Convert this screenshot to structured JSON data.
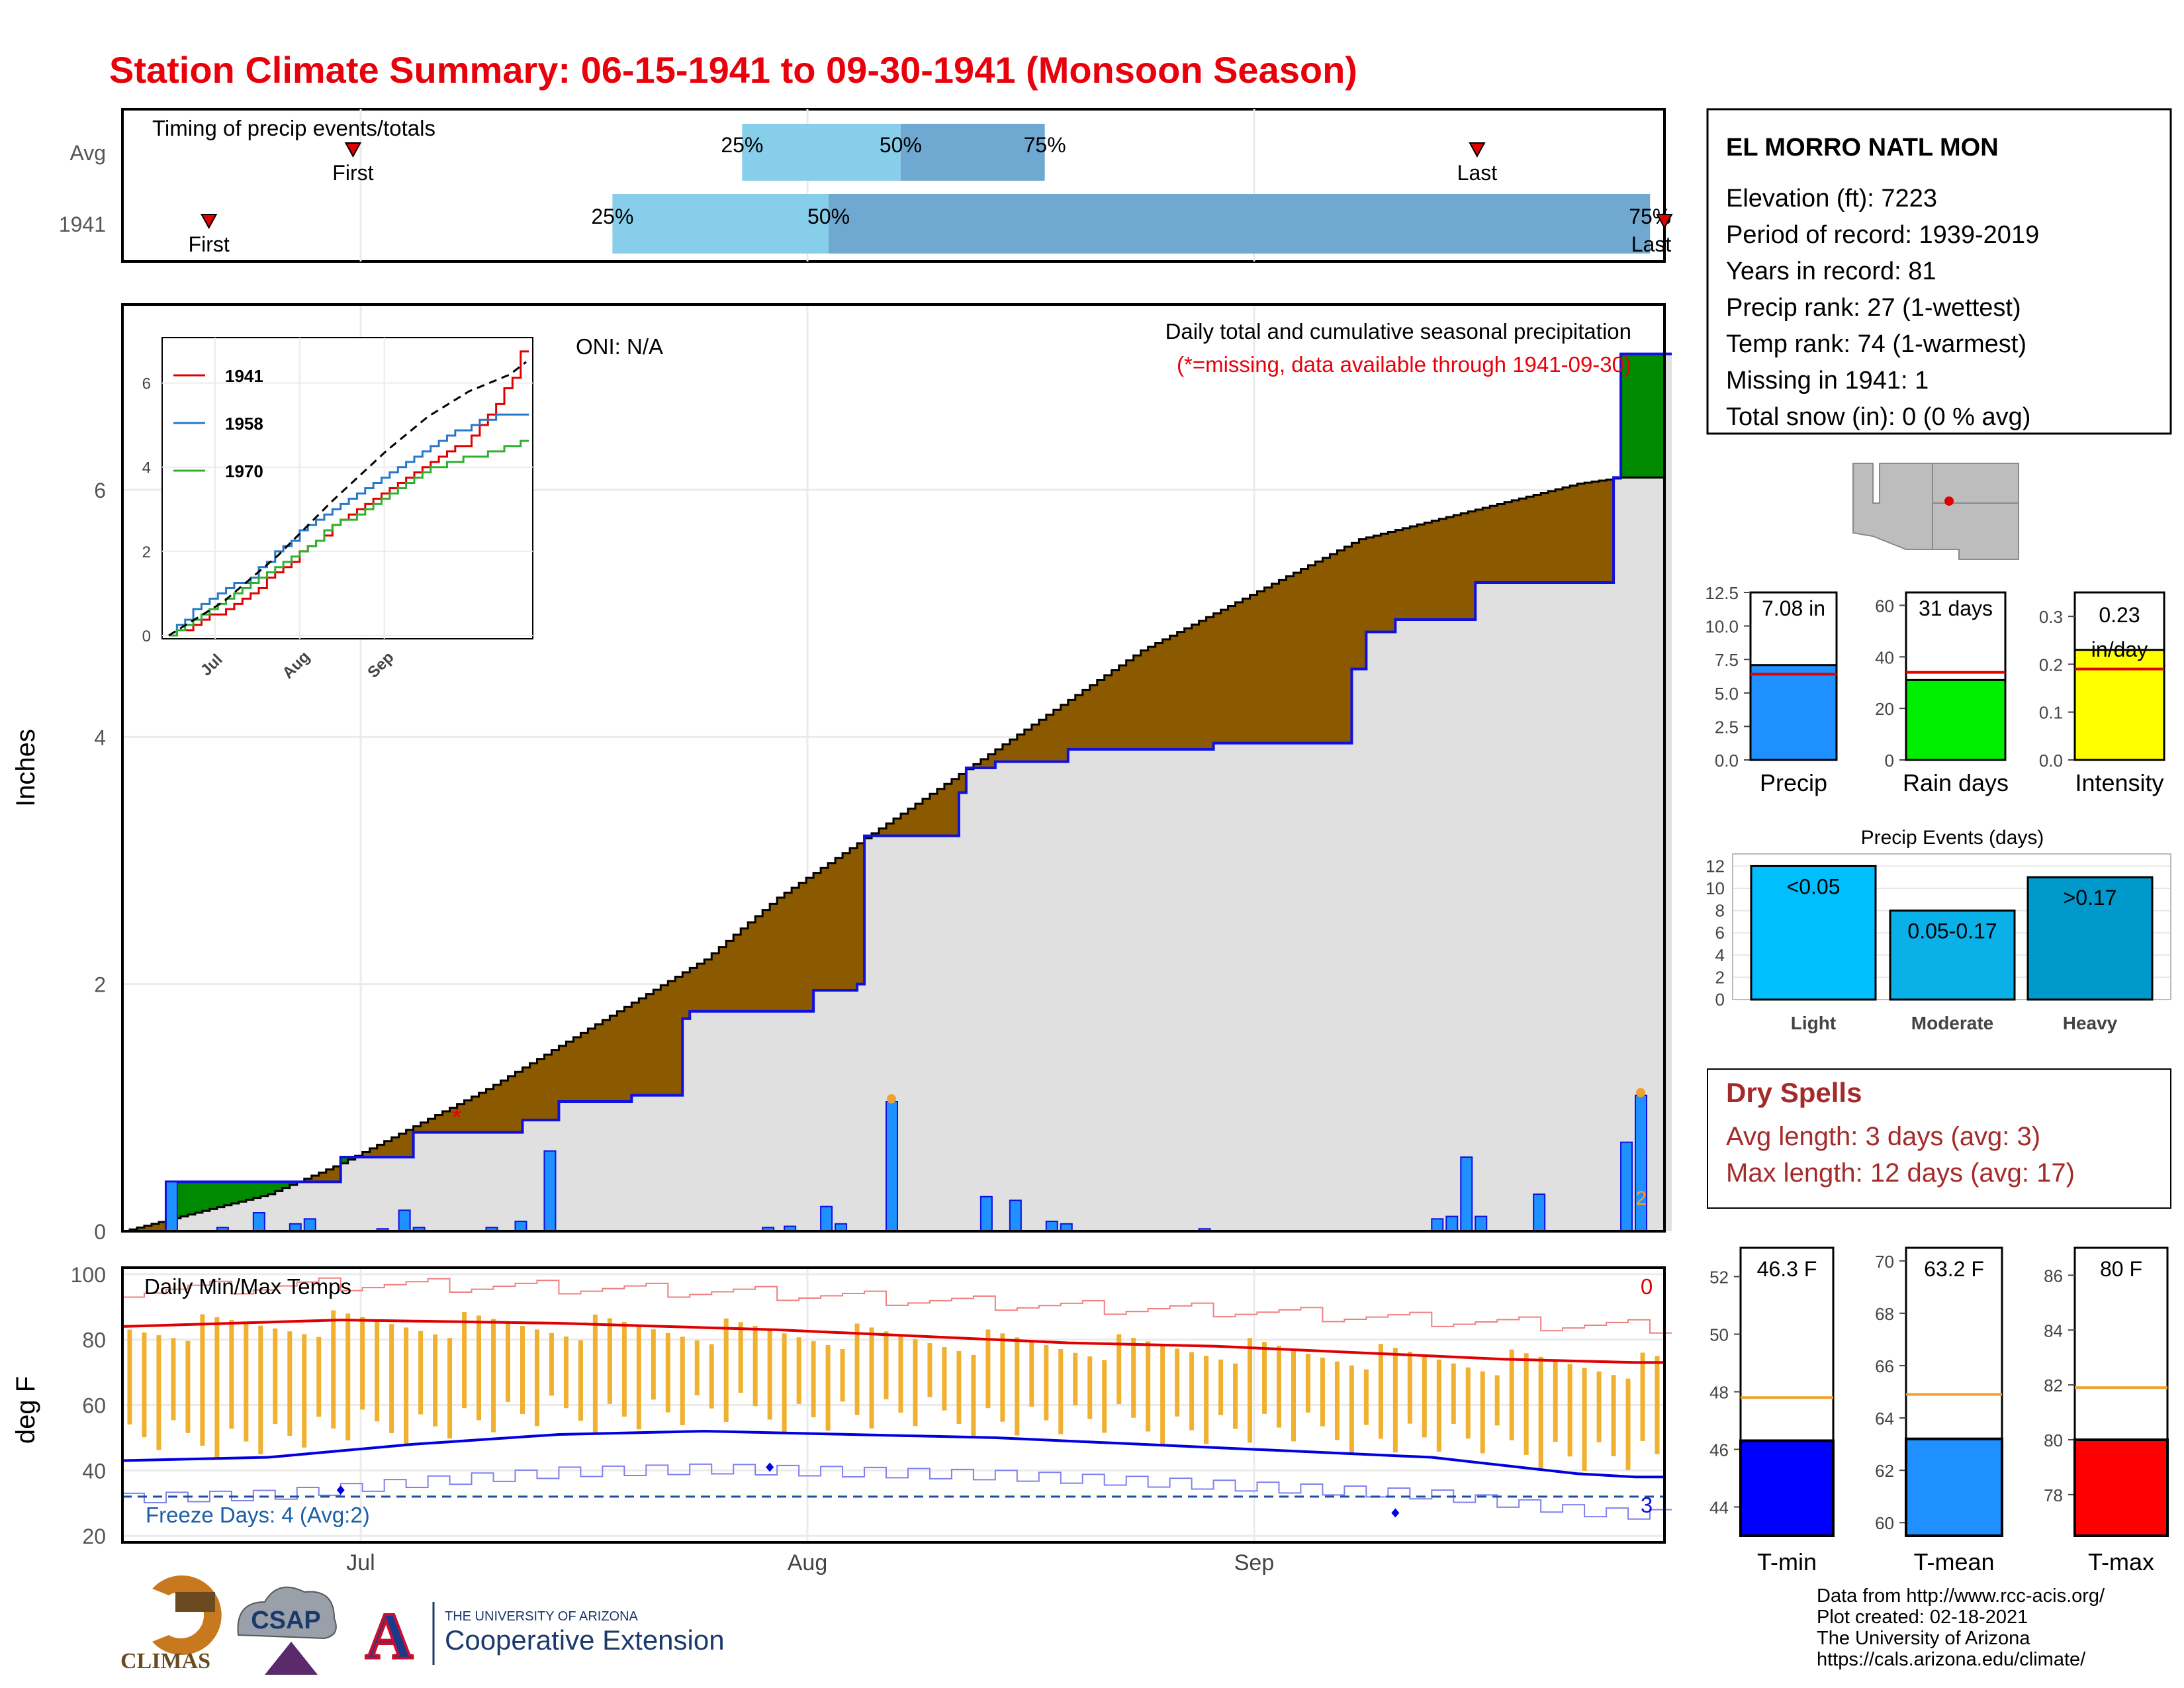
{
  "title": "Station Climate Summary: 06-15-1941 to 09-30-1941 (Monsoon Season)",
  "colors": {
    "title": "#e8000b",
    "light_blue": "#87ceeb",
    "mid_blue": "#6fa8d0",
    "brown": "#8b5a00",
    "green": "#008a00",
    "grey_fill": "#e0e0e0",
    "blue_line": "#1010e0",
    "bar_blue": "#1e90ff",
    "orange": "#f0b030",
    "red": "#e00000",
    "dry_spell": "#a52a2a"
  },
  "timing": {
    "title": "Timing of precip events/totals",
    "rows": [
      {
        "label": "Avg",
        "first": "First",
        "last": "Last",
        "p25": "25%",
        "p50": "50%",
        "p75": "75%",
        "first_day": "07-01",
        "p25_day": "07-28",
        "p50_day": "08-08",
        "p75_day": "08-18",
        "last_day": "09-17"
      },
      {
        "label": "1941",
        "first": "First",
        "last": "Last",
        "p25": "25%",
        "p50": "50%",
        "p75": "75%",
        "first_day": "06-21",
        "p25_day": "07-19",
        "p50_day": "08-03",
        "p75_day": "09-29",
        "last_day": "09-30"
      }
    ]
  },
  "station": {
    "name": "EL MORRO NATL MON",
    "lines": [
      "Elevation (ft): 7223",
      "Period of record: 1939-2019",
      "Years in record: 81",
      "Precip rank: 27 (1-wettest)",
      "Temp rank: 74 (1-warmest)",
      "Missing in 1941: 1",
      "Total snow (in): 0 (0 % avg)"
    ]
  },
  "main_chart": {
    "oni": "ONI: N/A",
    "title": "Daily total and cumulative seasonal precipitation",
    "subtitle": "(*=missing, data available through 1941-09-30)",
    "ylabel": "Inches",
    "yticks": [
      "0",
      "2",
      "4",
      "6"
    ],
    "missing_marker": "*",
    "count_label": "2"
  },
  "inset": {
    "legend": [
      "1941",
      "1958",
      "1970"
    ],
    "yticks": [
      "0",
      "2",
      "4",
      "6"
    ],
    "xticks": [
      "Jul",
      "Aug",
      "Sep"
    ]
  },
  "temp_chart": {
    "title": "Daily Min/Max Temps",
    "ylabel": "deg F",
    "yticks": [
      "20",
      "40",
      "60",
      "80",
      "100"
    ],
    "freeze": "Freeze Days: 4 (Avg:2)",
    "count_max": "0",
    "count_min": "3",
    "xticks": [
      "Jul",
      "Aug",
      "Sep"
    ]
  },
  "summary_bars": [
    {
      "label": "Precip",
      "value_label": "7.08 in",
      "value": 7.08,
      "avg": 6.4,
      "max": 12.5,
      "ticks": [
        "0.0",
        "2.5",
        "5.0",
        "7.5",
        "10.0",
        "12.5"
      ],
      "color": "#1e90ff"
    },
    {
      "label": "Rain days",
      "value_label": "31 days",
      "value": 31,
      "avg": 34,
      "max": 65,
      "ticks": [
        "0",
        "20",
        "40",
        "60"
      ],
      "color": "#00ee00"
    },
    {
      "label": "Intensity",
      "value_label": "0.23 in/day",
      "value": 0.23,
      "avg": 0.19,
      "max": 0.35,
      "ticks": [
        "0.0",
        "0.1",
        "0.2",
        "0.3"
      ],
      "color": "#ffff00"
    }
  ],
  "events": {
    "title": "Precip Events (days)",
    "yticks": [
      "0",
      "2",
      "4",
      "6",
      "8",
      "10",
      "12"
    ],
    "bars": [
      {
        "category": "Light",
        "label": "<0.05",
        "value": 12,
        "color": "#00bfff"
      },
      {
        "category": "Moderate",
        "label": "0.05-0.17",
        "value": 8,
        "color": "#0ab0e8"
      },
      {
        "category": "Heavy",
        "label": ">0.17",
        "value": 11,
        "color": "#0099cc"
      }
    ]
  },
  "dry_spells": {
    "title": "Dry Spells",
    "avg": "Avg length: 3 days (avg: 3)",
    "max": "Max length: 12 days (avg: 17)"
  },
  "temp_bars": [
    {
      "label": "T-min",
      "value_label": "46.3 F",
      "value": 46.3,
      "avg": 47.8,
      "min": 43,
      "max": 53,
      "ticks": [
        "44",
        "46",
        "48",
        "50",
        "52"
      ],
      "color": "#0000ff"
    },
    {
      "label": "T-mean",
      "value_label": "63.2 F",
      "value": 63.2,
      "avg": 64.9,
      "min": 59.5,
      "max": 70.5,
      "ticks": [
        "60",
        "62",
        "64",
        "66",
        "68",
        "70"
      ],
      "color": "#1e90ff"
    },
    {
      "label": "T-max",
      "value_label": "80 F",
      "value": 80,
      "avg": 81.9,
      "min": 76.5,
      "max": 87,
      "ticks": [
        "78",
        "80",
        "82",
        "84",
        "86"
      ],
      "color": "#ff0000"
    }
  ],
  "footer": {
    "lines": [
      "Data from http://www.rcc-acis.org/",
      "Plot created: 02-18-2021",
      "The University of Arizona",
      "https://cals.arizona.edu/climate/"
    ],
    "logo_climas": "CLIMAS",
    "logo_csap": "CSAP",
    "logo_a": "A",
    "ua_line1": "THE UNIVERSITY OF ARIZONA",
    "ua_line2": "Cooperative Extension"
  },
  "chart_data": [
    {
      "type": "area",
      "title": "Daily total and cumulative seasonal precipitation",
      "ylabel": "Inches",
      "ylim": [
        0,
        7.5
      ],
      "x_range": [
        "1941-06-15",
        "1941-09-30"
      ],
      "cumulative_1941": [
        [
          0,
          0
        ],
        [
          6,
          0.4
        ],
        [
          7,
          0.4
        ],
        [
          30,
          0.6
        ],
        [
          40,
          0.8
        ],
        [
          55,
          0.9
        ],
        [
          60,
          1.05
        ],
        [
          70,
          1.1
        ],
        [
          77,
          1.72
        ],
        [
          78,
          1.78
        ],
        [
          89,
          1.78
        ],
        [
          95,
          1.95
        ],
        [
          101,
          2.0
        ],
        [
          102,
          3.2
        ],
        [
          115,
          3.55
        ],
        [
          116,
          3.75
        ],
        [
          120,
          3.8
        ],
        [
          130,
          3.9
        ],
        [
          150,
          3.95
        ],
        [
          168,
          3.95
        ],
        [
          169,
          4.55
        ],
        [
          171,
          4.85
        ],
        [
          175,
          4.95
        ],
        [
          186,
          5.25
        ],
        [
          204,
          5.25
        ],
        [
          205,
          6.1
        ],
        [
          206,
          7.1
        ]
      ],
      "cumulative_avg": [
        [
          0,
          0
        ],
        [
          10,
          0.15
        ],
        [
          20,
          0.3
        ],
        [
          30,
          0.55
        ],
        [
          40,
          0.85
        ],
        [
          50,
          1.15
        ],
        [
          60,
          1.5
        ],
        [
          70,
          1.85
        ],
        [
          80,
          2.2
        ],
        [
          90,
          2.7
        ],
        [
          100,
          3.1
        ],
        [
          110,
          3.5
        ],
        [
          120,
          3.9
        ],
        [
          130,
          4.3
        ],
        [
          140,
          4.7
        ],
        [
          150,
          5.0
        ],
        [
          160,
          5.3
        ],
        [
          170,
          5.6
        ],
        [
          180,
          5.75
        ],
        [
          190,
          5.9
        ],
        [
          200,
          6.05
        ],
        [
          206,
          6.1
        ]
      ],
      "daily_bars": [
        {
          "day": 6,
          "value": 0.4
        },
        {
          "day": 13,
          "value": 0.03
        },
        {
          "day": 18,
          "value": 0.15
        },
        {
          "day": 23,
          "value": 0.06
        },
        {
          "day": 25,
          "value": 0.1
        },
        {
          "day": 35,
          "value": 0.02
        },
        {
          "day": 38,
          "value": 0.17
        },
        {
          "day": 40,
          "value": 0.03
        },
        {
          "day": 50,
          "value": 0.03
        },
        {
          "day": 54,
          "value": 0.08
        },
        {
          "day": 58,
          "value": 0.65
        },
        {
          "day": 88,
          "value": 0.03
        },
        {
          "day": 91,
          "value": 0.04
        },
        {
          "day": 96,
          "value": 0.2
        },
        {
          "day": 98,
          "value": 0.06
        },
        {
          "day": 105,
          "value": 1.05
        },
        {
          "day": 118,
          "value": 0.28
        },
        {
          "day": 122,
          "value": 0.25
        },
        {
          "day": 127,
          "value": 0.08
        },
        {
          "day": 129,
          "value": 0.06
        },
        {
          "day": 148,
          "value": 0.02
        },
        {
          "day": 180,
          "value": 0.1
        },
        {
          "day": 182,
          "value": 0.12
        },
        {
          "day": 184,
          "value": 0.6
        },
        {
          "day": 186,
          "value": 0.12
        },
        {
          "day": 194,
          "value": 0.3
        },
        {
          "day": 206,
          "value": 0.72
        },
        {
          "day": 208,
          "value": 1.1
        }
      ],
      "missing_day": 44
    },
    {
      "type": "line",
      "title": "",
      "series": [
        {
          "name": "1941",
          "color": "#e00000",
          "points": [
            [
              0,
              0
            ],
            [
              20,
              0.6
            ],
            [
              40,
              1.5
            ],
            [
              60,
              2.6
            ],
            [
              80,
              3.5
            ],
            [
              100,
              4.3
            ],
            [
              110,
              4.6
            ],
            [
              125,
              6.0
            ],
            [
              131,
              7.1
            ]
          ]
        },
        {
          "name": "1958",
          "color": "#2878c8",
          "points": [
            [
              0,
              0
            ],
            [
              12,
              0.8
            ],
            [
              30,
              1.4
            ],
            [
              50,
              2.6
            ],
            [
              70,
              3.4
            ],
            [
              90,
              4.3
            ],
            [
              110,
              5.0
            ],
            [
              125,
              5.3
            ],
            [
              131,
              5.2
            ]
          ]
        },
        {
          "name": "1970",
          "color": "#30b030",
          "points": [
            [
              0,
              0
            ],
            [
              20,
              0.9
            ],
            [
              40,
              1.6
            ],
            [
              60,
              2.6
            ],
            [
              80,
              3.3
            ],
            [
              100,
              4.1
            ],
            [
              115,
              4.3
            ],
            [
              131,
              4.6
            ]
          ]
        }
      ],
      "avg_points": [
        [
          0,
          0
        ],
        [
          20,
          0.8
        ],
        [
          40,
          1.9
        ],
        [
          60,
          3.2
        ],
        [
          80,
          4.4
        ],
        [
          95,
          5.2
        ],
        [
          110,
          5.8
        ],
        [
          125,
          6.2
        ],
        [
          131,
          6.5
        ]
      ],
      "ylim": [
        0,
        7
      ]
    },
    {
      "type": "line",
      "title": "Daily Min/Max Temps",
      "ylabel": "deg F",
      "ylim": [
        18,
        102
      ],
      "avg_max_points": [
        [
          0,
          84
        ],
        [
          30,
          86
        ],
        [
          60,
          85
        ],
        [
          90,
          83
        ],
        [
          110,
          81
        ],
        [
          130,
          79
        ],
        [
          150,
          78
        ],
        [
          170,
          76
        ],
        [
          190,
          74
        ],
        [
          208,
          73
        ]
      ],
      "avg_min_points": [
        [
          0,
          43
        ],
        [
          20,
          44
        ],
        [
          40,
          48
        ],
        [
          60,
          51
        ],
        [
          80,
          52
        ],
        [
          100,
          51
        ],
        [
          120,
          50
        ],
        [
          140,
          48
        ],
        [
          160,
          46
        ],
        [
          180,
          44
        ],
        [
          200,
          39
        ],
        [
          208,
          38
        ]
      ],
      "freeze_line": 32
    }
  ]
}
